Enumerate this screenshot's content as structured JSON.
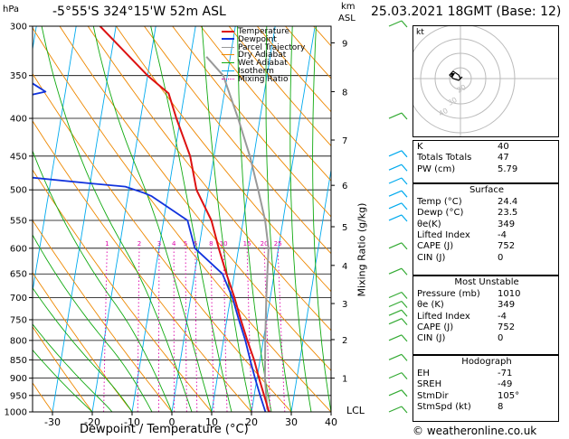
{
  "header": {
    "location": "-5°55'S 324°15'W 52m ASL",
    "datetime": "25.03.2021 18GMT (Base: 12)",
    "hpa_unit": "hPa",
    "km_unit": "km",
    "asl_unit": "ASL",
    "mixing_ratio_label": "Mixing Ratio (g/kg)",
    "x_axis_label": "Dewpoint / Temperature (°C)",
    "lcl_label": "LCL",
    "footer": "© weatheronline.co.uk",
    "hodo_label": "kt"
  },
  "colors": {
    "temperature": "#dd1111",
    "dewpoint": "#1133dd",
    "parcel": "#999999",
    "dry_adiabat": "#ee8800",
    "wet_adiabat": "#11aa11",
    "isotherm": "#00aaee",
    "mixing_ratio": "#dd00aa"
  },
  "legend": [
    "Temperature",
    "Dewpoint",
    "Parcel Trajectory",
    "Dry Adiabat",
    "Wet Adiabat",
    "Isotherm",
    "Mixing Ratio"
  ],
  "chart_data": {
    "type": "line",
    "title": "-5°55'S 324°15'W 52m ASL",
    "xlabel": "Dewpoint / Temperature (°C)",
    "ylabel": "hPa",
    "xlim": [
      -35,
      40
    ],
    "ylim": [
      1000,
      300
    ],
    "x_ticks": [
      -30,
      -20,
      -10,
      0,
      10,
      20,
      30,
      40
    ],
    "pressure_levels": [
      300,
      350,
      400,
      450,
      500,
      550,
      600,
      650,
      700,
      750,
      800,
      850,
      900,
      950,
      1000
    ],
    "km_ticks": [
      {
        "label": "9",
        "p": 316
      },
      {
        "label": "8",
        "p": 368
      },
      {
        "label": "7",
        "p": 428
      },
      {
        "label": "6",
        "p": 493
      },
      {
        "label": "5",
        "p": 561
      },
      {
        "label": "4",
        "p": 633
      },
      {
        "label": "3",
        "p": 713
      },
      {
        "label": "2",
        "p": 798
      },
      {
        "label": "1",
        "p": 900
      }
    ],
    "mixing_ratio_labels": [
      "1",
      "2",
      "3",
      "4",
      "5",
      "6",
      "8",
      "10",
      "15",
      "20",
      "25"
    ],
    "series": [
      {
        "name": "Temperature",
        "points": [
          [
            24.4,
            1000
          ],
          [
            22.5,
            950
          ],
          [
            20.5,
            900
          ],
          [
            18.5,
            850
          ],
          [
            16,
            800
          ],
          [
            13.5,
            750
          ],
          [
            11,
            700
          ],
          [
            8,
            650
          ],
          [
            5,
            600
          ],
          [
            2,
            550
          ],
          [
            -3,
            500
          ],
          [
            -6,
            450
          ],
          [
            -11,
            400
          ],
          [
            -14,
            370
          ],
          [
            -20,
            350
          ],
          [
            -34,
            300
          ]
        ]
      },
      {
        "name": "Dewpoint",
        "points": [
          [
            23.5,
            1000
          ],
          [
            21.5,
            950
          ],
          [
            19.5,
            900
          ],
          [
            17.5,
            850
          ],
          [
            15.5,
            800
          ],
          [
            13,
            750
          ],
          [
            10.5,
            700
          ],
          [
            7,
            650
          ],
          [
            -1,
            600
          ],
          [
            -4,
            550
          ],
          [
            -14,
            510
          ],
          [
            -16,
            505
          ],
          [
            -21,
            495
          ],
          [
            -30,
            490
          ],
          [
            -47,
            480
          ],
          [
            -50,
            465
          ],
          [
            -55,
            450
          ],
          [
            -60,
            400
          ],
          [
            -50,
            385
          ],
          [
            -56,
            380
          ],
          [
            -45,
            368
          ],
          [
            -52,
            350
          ],
          [
            -60,
            320
          ],
          [
            -65,
            305
          ]
        ]
      },
      {
        "name": "Parcel Trajectory",
        "points": [
          [
            24.4,
            1000
          ],
          [
            23.8,
            990
          ],
          [
            22,
            900
          ],
          [
            20.5,
            800
          ],
          [
            19,
            700
          ],
          [
            17.5,
            600
          ],
          [
            15.5,
            550
          ],
          [
            12.5,
            500
          ],
          [
            9,
            450
          ],
          [
            4.5,
            400
          ],
          [
            -1,
            350
          ],
          [
            -6,
            330
          ]
        ]
      }
    ]
  },
  "indices": [
    {
      "label": "K",
      "value": "40"
    },
    {
      "label": "Totals Totals",
      "value": "47"
    },
    {
      "label": "PW (cm)",
      "value": "5.79"
    }
  ],
  "surface": {
    "title": "Surface",
    "rows": [
      {
        "label": "Temp (°C)",
        "value": "24.4"
      },
      {
        "label": "Dewp (°C)",
        "value": "23.5"
      },
      {
        "label": "θe(K)",
        "value": "349"
      },
      {
        "label": "Lifted Index",
        "value": "-4"
      },
      {
        "label": "CAPE (J)",
        "value": "752"
      },
      {
        "label": "CIN (J)",
        "value": "0"
      }
    ]
  },
  "most_unstable": {
    "title": "Most Unstable",
    "rows": [
      {
        "label": "Pressure (mb)",
        "value": "1010"
      },
      {
        "label": "θe (K)",
        "value": "349"
      },
      {
        "label": "Lifted Index",
        "value": "-4"
      },
      {
        "label": "CAPE (J)",
        "value": "752"
      },
      {
        "label": "CIN (J)",
        "value": "0"
      }
    ]
  },
  "hodograph": {
    "title": "Hodograph",
    "rows": [
      {
        "label": "EH",
        "value": "-71"
      },
      {
        "label": "SREH",
        "value": "-49"
      },
      {
        "label": "StmDir",
        "value": "105°"
      },
      {
        "label": "StmSpd (kt)",
        "value": "8"
      }
    ]
  }
}
